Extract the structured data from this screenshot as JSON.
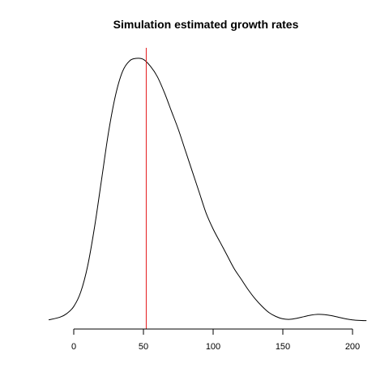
{
  "chart_data": {
    "type": "line",
    "title": "Simulation estimated growth rates",
    "xlabel": "",
    "ylabel": "",
    "xlim": [
      -18,
      210
    ],
    "ylim": [
      0,
      1
    ],
    "x_ticks": [
      0,
      50,
      100,
      150,
      200
    ],
    "x_tick_labels": [
      "0",
      "50",
      "100",
      "150",
      "200"
    ],
    "grid": false,
    "series": [
      {
        "x": [
          -18,
          -10,
          -5,
          0,
          5,
          10,
          15,
          20,
          25,
          30,
          35,
          40,
          45,
          50,
          55,
          60,
          65,
          70,
          75,
          80,
          85,
          90,
          95,
          100,
          105,
          110,
          115,
          120,
          125,
          130,
          135,
          140,
          145,
          150,
          155,
          160,
          165,
          170,
          175,
          180,
          185,
          190,
          195,
          200,
          205,
          210
        ],
        "values": [
          0.004,
          0.014,
          0.028,
          0.055,
          0.11,
          0.21,
          0.36,
          0.54,
          0.72,
          0.86,
          0.95,
          0.99,
          1.0,
          0.996,
          0.97,
          0.93,
          0.87,
          0.8,
          0.73,
          0.65,
          0.57,
          0.49,
          0.41,
          0.35,
          0.3,
          0.25,
          0.2,
          0.16,
          0.12,
          0.085,
          0.056,
          0.032,
          0.017,
          0.008,
          0.006,
          0.01,
          0.016,
          0.022,
          0.025,
          0.024,
          0.02,
          0.014,
          0.008,
          0.004,
          0.002,
          0.001
        ],
        "color": "#000000"
      }
    ],
    "vline": {
      "x": 52,
      "color": "#e41a1c"
    }
  }
}
